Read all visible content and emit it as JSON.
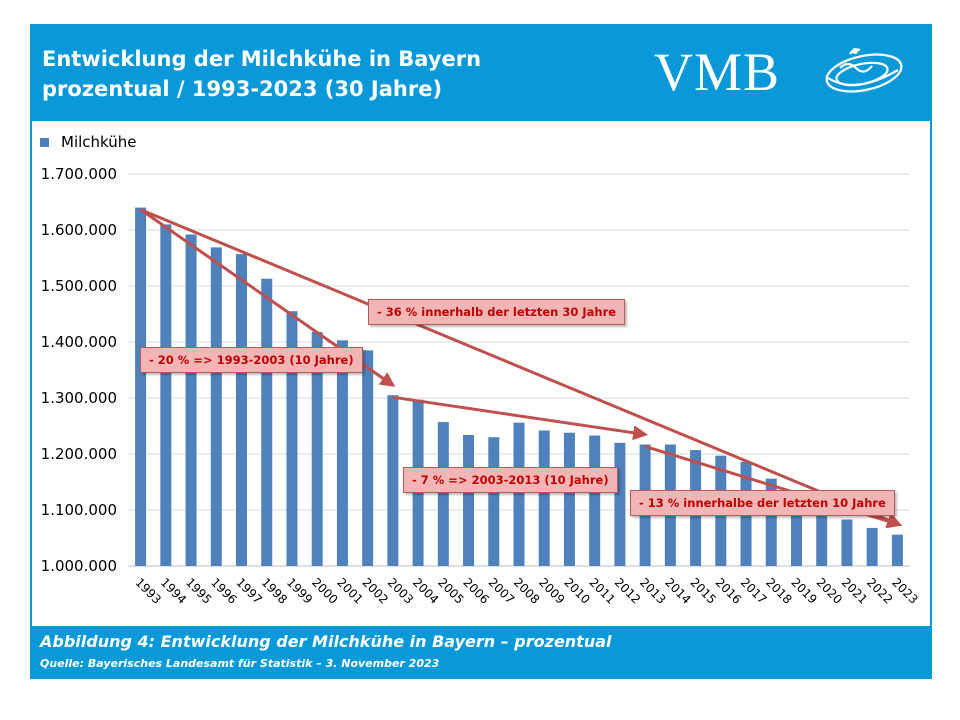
{
  "header": {
    "title_line1": "Entwicklung der Milchkühe in Bayern",
    "title_line2": "prozentual / 1993-2023 (30 Jahre)",
    "logo_text": "VMB"
  },
  "footer": {
    "caption": "Abbildung 4: Entwicklung der Milchkühe in Bayern – prozentual",
    "source": "Quelle: Bayerisches Landesamt für Statistik – 3. November 2023"
  },
  "colors": {
    "frame": "#0a99d8",
    "bar": "#4f81bd",
    "arrow": "#c0504d",
    "annotation_bg": "#f2b5b5",
    "annotation_text": "#c00000"
  },
  "chart_data": {
    "type": "bar",
    "title": "",
    "xlabel": "",
    "ylabel": "",
    "ylim": [
      1000000,
      1700000
    ],
    "yticks": [
      "1.000.000",
      "1.100.000",
      "1.200.000",
      "1.300.000",
      "1.400.000",
      "1.500.000",
      "1.600.000",
      "1.700.000"
    ],
    "legend": "top-left",
    "grid": true,
    "categories": [
      "1993",
      "1994",
      "1995",
      "1996",
      "1997",
      "1998",
      "1999",
      "2000",
      "2001",
      "2002",
      "2003",
      "2004",
      "2005",
      "2006",
      "2007",
      "2008",
      "2009",
      "2010",
      "2011",
      "2012",
      "2013",
      "2014",
      "2015",
      "2016",
      "2017",
      "2018",
      "2019",
      "2020",
      "2021",
      "2022",
      "2023"
    ],
    "series": [
      {
        "name": "Milchkühe",
        "values": [
          1640000,
          1610000,
          1592000,
          1569000,
          1557000,
          1513000,
          1455000,
          1418000,
          1403000,
          1385000,
          1305000,
          1297000,
          1257000,
          1234000,
          1230000,
          1256000,
          1242000,
          1238000,
          1233000,
          1220000,
          1217000,
          1217000,
          1207000,
          1197000,
          1186000,
          1156000,
          1130000,
          1107000,
          1083000,
          1068000,
          1056000
        ]
      }
    ],
    "annotations": [
      {
        "text": "- 36 % innerhalb der letzten 30 Jahre"
      },
      {
        "text": "- 20 % => 1993-2003  (10 Jahre)"
      },
      {
        "text": "- 7 %  => 2003-2013  (10 Jahre)"
      },
      {
        "text": "- 13 % innerhalbe der letzten 10 Jahre"
      }
    ]
  }
}
